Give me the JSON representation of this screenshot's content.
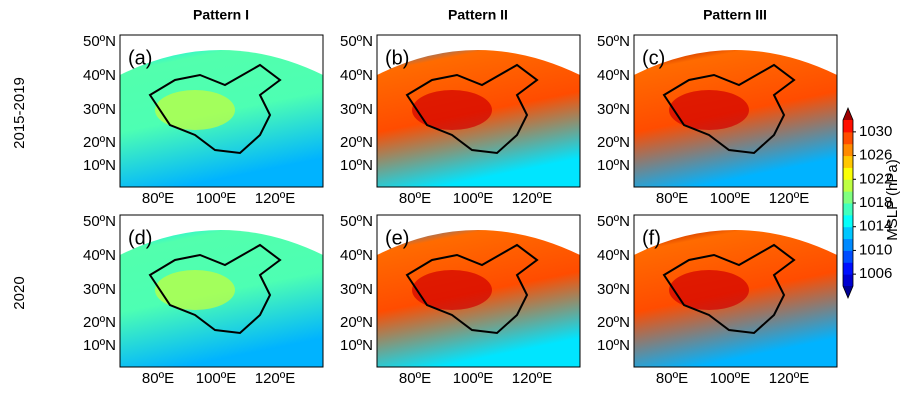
{
  "columns": [
    "Pattern I",
    "Pattern II",
    "Pattern III"
  ],
  "rows": [
    "2015-2019",
    "2020"
  ],
  "panels": [
    "(a)",
    "(b)",
    "(c)",
    "(d)",
    "(e)",
    "(f)"
  ],
  "lat_ticks": [
    "50ºN",
    "40ºN",
    "30ºN",
    "20ºN",
    "10ºN"
  ],
  "lon_ticks": [
    "80ºE",
    "100ºE",
    "120ºE"
  ],
  "colorbar": {
    "label": "MSLP (hPa)",
    "range": [
      1004,
      1032
    ],
    "ticks": [
      1006,
      1010,
      1014,
      1018,
      1022,
      1026,
      1030
    ]
  }
}
